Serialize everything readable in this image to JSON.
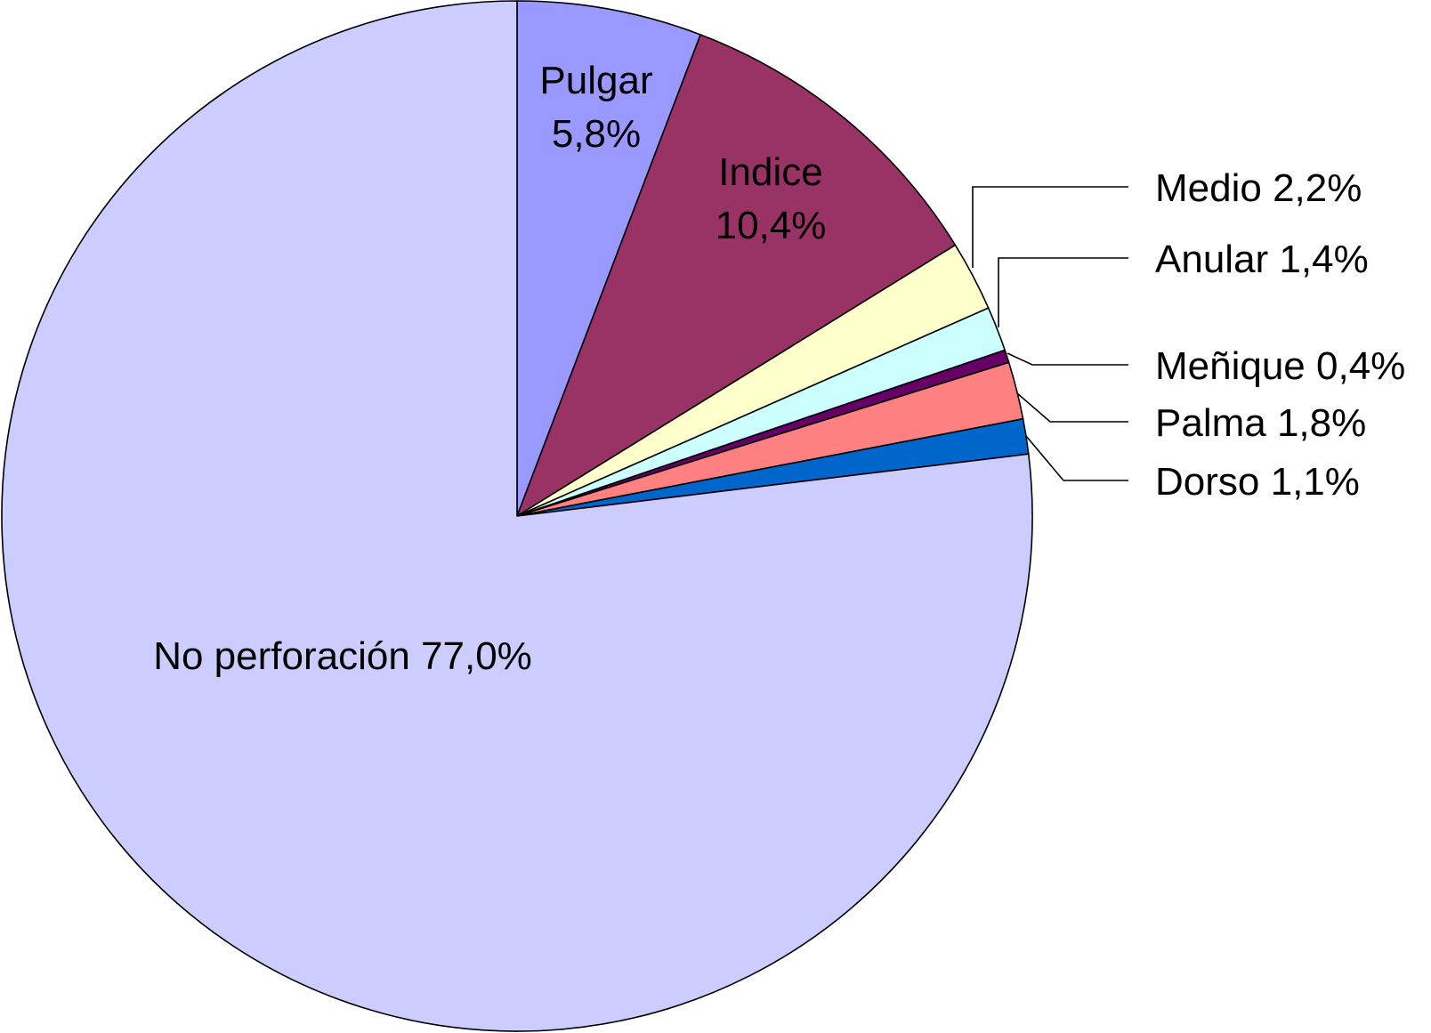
{
  "chart_data": {
    "type": "pie",
    "unit": "%",
    "slices": [
      {
        "name": "Pulgar",
        "value": 5.8,
        "label_lines": [
          "Pulgar",
          "5,8%"
        ],
        "color": "#9999ff",
        "label_style": "inside"
      },
      {
        "name": "Indice",
        "value": 10.4,
        "label_lines": [
          "Indice",
          "10,4%"
        ],
        "color": "#993366",
        "label_style": "inside"
      },
      {
        "name": "Medio",
        "value": 2.2,
        "label_lines": [
          "Medio 2,2%"
        ],
        "color": "#ffffcc",
        "label_style": "leader"
      },
      {
        "name": "Anular",
        "value": 1.4,
        "label_lines": [
          "Anular 1,4%"
        ],
        "color": "#ccffff",
        "label_style": "leader"
      },
      {
        "name": "Meñique",
        "value": 0.4,
        "label_lines": [
          "Meñique 0,4%"
        ],
        "color": "#660066",
        "label_style": "leader"
      },
      {
        "name": "Palma",
        "value": 1.8,
        "label_lines": [
          "Palma 1,8%"
        ],
        "color": "#ff8080",
        "label_style": "leader"
      },
      {
        "name": "Dorso",
        "value": 1.1,
        "label_lines": [
          "Dorso 1,1%"
        ],
        "color": "#0066cc",
        "label_style": "leader"
      },
      {
        "name": "No perforación",
        "value": 77.0,
        "label_lines": [
          "No perforación 77,0%"
        ],
        "color": "#ccccff",
        "label_style": "inside"
      }
    ],
    "start_angle_deg": 0,
    "direction": "clockwise"
  }
}
